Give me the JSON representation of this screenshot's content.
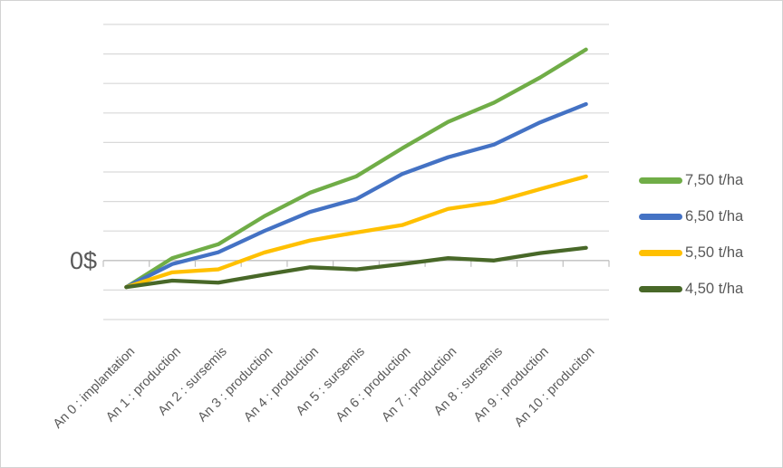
{
  "chart_data": {
    "type": "line",
    "title": "",
    "categories": [
      "An 0 : implantation",
      "An 1 : production",
      "An 2 : sursemis",
      "An 3 : production",
      "An 4 : production",
      "An 5 : sursemis",
      "An 6 : production",
      "An 7 : production",
      "An 8 : sursemis",
      "An 9 : production",
      "An 10 : produciton"
    ],
    "series": [
      {
        "name": "7,50 t/ha",
        "color": "#70AD47",
        "values": [
          -0.9,
          0.08,
          0.55,
          1.5,
          2.3,
          2.85,
          3.8,
          4.7,
          5.35,
          6.2,
          7.15
        ]
      },
      {
        "name": "6,50 t/ha",
        "color": "#4472C4",
        "values": [
          -0.9,
          -0.12,
          0.28,
          1.0,
          1.65,
          2.08,
          2.93,
          3.5,
          3.93,
          4.68,
          5.3
        ]
      },
      {
        "name": "5,50 t/ha",
        "color": "#FFC000",
        "values": [
          -0.9,
          -0.4,
          -0.3,
          0.27,
          0.68,
          0.95,
          1.2,
          1.75,
          1.98,
          2.42,
          2.85
        ]
      },
      {
        "name": "4,50 t/ha",
        "color": "#486828",
        "values": [
          -0.9,
          -0.68,
          -0.75,
          -0.48,
          -0.23,
          -0.3,
          -0.12,
          0.08,
          0.0,
          0.25,
          0.43
        ]
      }
    ],
    "y_axis": {
      "zero_label": "0$",
      "min": -2,
      "max": 8,
      "gridline_step": 1,
      "unit_note": "Only the 0$ gridline is labeled; values are expressed in gridline divisions relative to the 0$ line."
    },
    "xlabel": "",
    "ylabel": "",
    "legend_position": "right",
    "grid": true
  },
  "colors": {
    "gridline": "#d9d9d9",
    "axis": "#bfbfbf",
    "text": "#595959"
  }
}
